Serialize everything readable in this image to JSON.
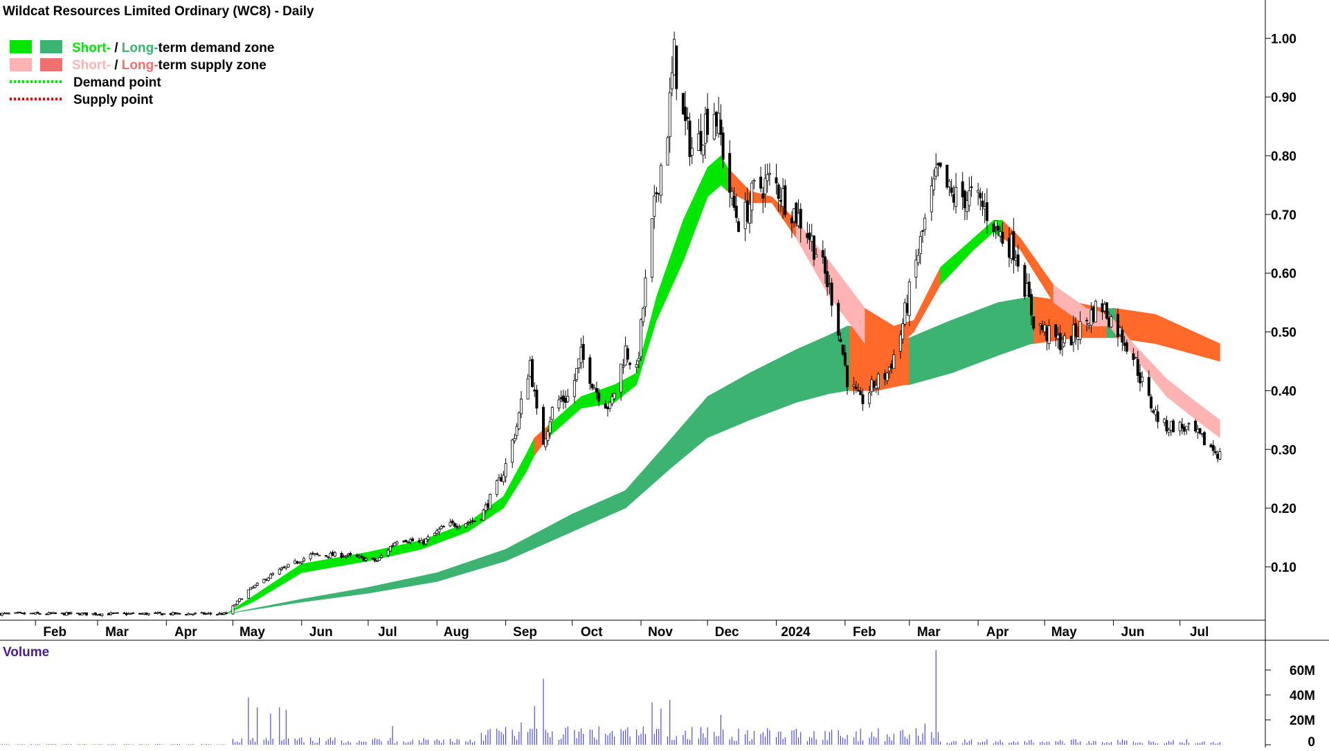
{
  "chart_data": [
    {
      "type": "candlestick",
      "title": "Wildcat Resources Limited Ordinary (WC8) - Daily",
      "legend": [
        {
          "short_label": "Short-",
          "separator": " / ",
          "long_label": "Long-",
          "suffix": "term demand zone",
          "short_color": "#00e600",
          "long_color": "#3cb371"
        },
        {
          "short_label": "Short-",
          "separator": " / ",
          "long_label": "Long-",
          "suffix": "term supply zone",
          "short_color": "#ffb3b3",
          "long_color": "#f07070"
        },
        {
          "label": "Demand point",
          "color": "#00e600",
          "style": "dotted"
        },
        {
          "label": "Supply point",
          "color": "#e00000",
          "style": "dotted"
        }
      ],
      "legend_position": "top-left",
      "x_ticks": [
        "Feb",
        "Mar",
        "Apr",
        "May",
        "Jun",
        "Jul",
        "Aug",
        "Sep",
        "Oct",
        "Nov",
        "Dec",
        "2024",
        "Feb",
        "Mar",
        "Apr",
        "May",
        "Jun",
        "Jul"
      ],
      "y_ticks": [
        "1.00",
        "0.90",
        "0.80",
        "0.70",
        "0.60",
        "0.50",
        "0.40",
        "0.30",
        "0.20",
        "0.10"
      ],
      "ylim": [
        0,
        1.05
      ],
      "price_path": [
        [
          "2023-01-16",
          0.02
        ],
        [
          "2023-04-28",
          0.02
        ],
        [
          "2023-05-08",
          0.06
        ],
        [
          "2023-05-20",
          0.09
        ],
        [
          "2023-06-05",
          0.12
        ],
        [
          "2023-06-20",
          0.12
        ],
        [
          "2023-07-05",
          0.11
        ],
        [
          "2023-07-15",
          0.15
        ],
        [
          "2023-07-25",
          0.14
        ],
        [
          "2023-08-05",
          0.17
        ],
        [
          "2023-08-20",
          0.18
        ],
        [
          "2023-08-31",
          0.26
        ],
        [
          "2023-09-06",
          0.34
        ],
        [
          "2023-09-12",
          0.45
        ],
        [
          "2023-09-17",
          0.3
        ],
        [
          "2023-09-23",
          0.38
        ],
        [
          "2023-09-30",
          0.39
        ],
        [
          "2023-10-05",
          0.46
        ],
        [
          "2023-10-12",
          0.4
        ],
        [
          "2023-10-18",
          0.37
        ],
        [
          "2023-10-25",
          0.47
        ],
        [
          "2023-10-30",
          0.43
        ],
        [
          "2023-11-03",
          0.58
        ],
        [
          "2023-11-08",
          0.74
        ],
        [
          "2023-11-13",
          0.85
        ],
        [
          "2023-11-16",
          0.97
        ],
        [
          "2023-11-20",
          0.86
        ],
        [
          "2023-11-25",
          0.8
        ],
        [
          "2023-11-30",
          0.86
        ],
        [
          "2023-12-04",
          0.88
        ],
        [
          "2023-12-07",
          0.83
        ],
        [
          "2023-12-12",
          0.72
        ],
        [
          "2023-12-16",
          0.68
        ],
        [
          "2023-12-22",
          0.74
        ],
        [
          "2023-12-30",
          0.76
        ],
        [
          "2024-01-06",
          0.72
        ],
        [
          "2024-01-14",
          0.68
        ],
        [
          "2024-01-20",
          0.63
        ],
        [
          "2024-01-27",
          0.55
        ],
        [
          "2024-02-02",
          0.42
        ],
        [
          "2024-02-08",
          0.38
        ],
        [
          "2024-02-14",
          0.41
        ],
        [
          "2024-02-20",
          0.43
        ],
        [
          "2024-02-25",
          0.48
        ],
        [
          "2024-03-03",
          0.6
        ],
        [
          "2024-03-10",
          0.72
        ],
        [
          "2024-03-14",
          0.77
        ],
        [
          "2024-03-20",
          0.73
        ],
        [
          "2024-03-30",
          0.73
        ],
        [
          "2024-04-06",
          0.7
        ],
        [
          "2024-04-12",
          0.66
        ],
        [
          "2024-04-18",
          0.64
        ],
        [
          "2024-04-26",
          0.52
        ],
        [
          "2024-05-04",
          0.49
        ],
        [
          "2024-05-10",
          0.48
        ],
        [
          "2024-05-18",
          0.51
        ],
        [
          "2024-05-26",
          0.55
        ],
        [
          "2024-06-02",
          0.51
        ],
        [
          "2024-06-09",
          0.47
        ],
        [
          "2024-06-16",
          0.39
        ],
        [
          "2024-06-23",
          0.34
        ],
        [
          "2024-06-30",
          0.34
        ],
        [
          "2024-07-07",
          0.33
        ],
        [
          "2024-07-13",
          0.31
        ],
        [
          "2024-07-19",
          0.29
        ]
      ],
      "zones": {
        "short_term": [
          [
            "2023-04-28",
            0.02,
            0.02,
            "demand"
          ],
          [
            "2023-05-10",
            0.04,
            0.05,
            "demand"
          ],
          [
            "2023-06-01",
            0.09,
            0.105,
            "demand"
          ],
          [
            "2023-07-01",
            0.11,
            0.125,
            "demand"
          ],
          [
            "2023-07-25",
            0.13,
            0.145,
            "demand"
          ],
          [
            "2023-08-15",
            0.16,
            0.175,
            "demand"
          ],
          [
            "2023-08-31",
            0.2,
            0.22,
            "demand"
          ],
          [
            "2023-09-10",
            0.26,
            0.29,
            "demand"
          ],
          [
            "2023-09-14",
            0.29,
            0.32,
            "supply"
          ],
          [
            "2023-09-20",
            0.32,
            0.34,
            "demand"
          ],
          [
            "2023-10-05",
            0.37,
            0.39,
            "demand"
          ],
          [
            "2023-10-20",
            0.38,
            0.41,
            "demand"
          ],
          [
            "2023-10-30",
            0.41,
            0.43,
            "demand"
          ],
          [
            "2023-11-08",
            0.52,
            0.56,
            "demand"
          ],
          [
            "2023-11-20",
            0.62,
            0.69,
            "demand"
          ],
          [
            "2023-12-01",
            0.73,
            0.78,
            "demand"
          ],
          [
            "2023-12-07",
            0.75,
            0.8,
            "demand"
          ],
          [
            "2023-12-10",
            0.74,
            0.78,
            "supply"
          ],
          [
            "2023-12-20",
            0.72,
            0.74,
            "supply"
          ],
          [
            "2023-12-30",
            0.72,
            0.73,
            "supply"
          ],
          [
            "2024-01-10",
            0.66,
            0.69,
            "supply"
          ],
          [
            "2024-01-25",
            0.56,
            0.62,
            "supply"
          ],
          [
            "2024-02-10",
            0.48,
            0.54,
            "supply"
          ],
          [
            "2024-02-23",
            0.47,
            0.51,
            "supply"
          ],
          [
            "2024-03-03",
            0.5,
            0.52,
            "supply"
          ],
          [
            "2024-03-15",
            0.58,
            0.61,
            "demand"
          ],
          [
            "2024-03-30",
            0.64,
            0.66,
            "demand"
          ],
          [
            "2024-04-08",
            0.67,
            0.69,
            "demand"
          ],
          [
            "2024-04-12",
            0.66,
            0.69,
            "supply"
          ],
          [
            "2024-04-20",
            0.64,
            0.66,
            "supply"
          ],
          [
            "2024-05-05",
            0.55,
            0.58,
            "supply"
          ],
          [
            "2024-05-20",
            0.51,
            0.54,
            "supply"
          ],
          [
            "2024-05-30",
            0.51,
            0.53,
            "supply"
          ],
          [
            "2024-06-10",
            0.46,
            0.48,
            "supply"
          ],
          [
            "2024-06-25",
            0.39,
            0.42,
            "supply"
          ],
          [
            "2024-07-05",
            0.36,
            0.39,
            "supply"
          ],
          [
            "2024-07-19",
            0.32,
            0.35,
            "supply"
          ]
        ],
        "long_term": [
          [
            "2023-04-28",
            0.02,
            0.02,
            "demand"
          ],
          [
            "2023-06-01",
            0.04,
            0.045,
            "demand"
          ],
          [
            "2023-07-01",
            0.055,
            0.065,
            "demand"
          ],
          [
            "2023-08-01",
            0.075,
            0.09,
            "demand"
          ],
          [
            "2023-09-01",
            0.11,
            0.13,
            "demand"
          ],
          [
            "2023-10-01",
            0.16,
            0.19,
            "demand"
          ],
          [
            "2023-10-25",
            0.2,
            0.23,
            "demand"
          ],
          [
            "2023-11-15",
            0.27,
            0.32,
            "demand"
          ],
          [
            "2023-12-01",
            0.32,
            0.39,
            "demand"
          ],
          [
            "2023-12-20",
            0.35,
            0.43,
            "demand"
          ],
          [
            "2024-01-10",
            0.38,
            0.47,
            "demand"
          ],
          [
            "2024-01-25",
            0.395,
            0.495,
            "demand"
          ],
          [
            "2024-02-02",
            0.4,
            0.51,
            "demand"
          ],
          [
            "2024-02-03",
            0.4,
            0.51,
            "supply"
          ],
          [
            "2024-02-15",
            0.4,
            0.5,
            "supply"
          ],
          [
            "2024-02-28",
            0.41,
            0.49,
            "supply"
          ],
          [
            "2024-03-01",
            0.41,
            0.49,
            "demand"
          ],
          [
            "2024-03-20",
            0.43,
            0.52,
            "demand"
          ],
          [
            "2024-04-10",
            0.46,
            0.55,
            "demand"
          ],
          [
            "2024-04-25",
            0.48,
            0.56,
            "demand"
          ],
          [
            "2024-04-26",
            0.48,
            0.56,
            "supply"
          ],
          [
            "2024-05-15",
            0.49,
            0.55,
            "supply"
          ],
          [
            "2024-05-28",
            0.49,
            0.54,
            "supply"
          ],
          [
            "2024-05-29",
            0.49,
            0.54,
            "demand"
          ],
          [
            "2024-06-01",
            0.49,
            0.54,
            "demand"
          ],
          [
            "2024-06-02",
            0.49,
            0.54,
            "supply"
          ],
          [
            "2024-06-20",
            0.48,
            0.53,
            "supply"
          ],
          [
            "2024-07-19",
            0.45,
            0.48,
            "supply"
          ]
        ]
      }
    },
    {
      "type": "bar",
      "title": "Volume",
      "y_ticks": [
        "60M",
        "40M",
        "20M",
        "0"
      ],
      "ylim": [
        0,
        70000000
      ],
      "spikes": [
        [
          "2023-05-08",
          38000000
        ],
        [
          "2023-05-12",
          30000000
        ],
        [
          "2023-05-18",
          25000000
        ],
        [
          "2023-05-22",
          30000000
        ],
        [
          "2023-05-25",
          28000000
        ],
        [
          "2023-07-12",
          15000000
        ],
        [
          "2023-08-28",
          13000000
        ],
        [
          "2023-09-08",
          18000000
        ],
        [
          "2023-09-14",
          31000000
        ],
        [
          "2023-09-18",
          53000000
        ],
        [
          "2023-11-06",
          34000000
        ],
        [
          "2023-11-10",
          29000000
        ],
        [
          "2023-11-14",
          36000000
        ],
        [
          "2023-11-18",
          28000000
        ],
        [
          "2023-12-07",
          24000000
        ],
        [
          "2024-03-13",
          76000000
        ],
        [
          "2024-03-03",
          19000000
        ],
        [
          "2024-03-08",
          17000000
        ],
        [
          "2024-02-08",
          13000000
        ],
        [
          "2024-01-26",
          12000000
        ]
      ]
    }
  ]
}
